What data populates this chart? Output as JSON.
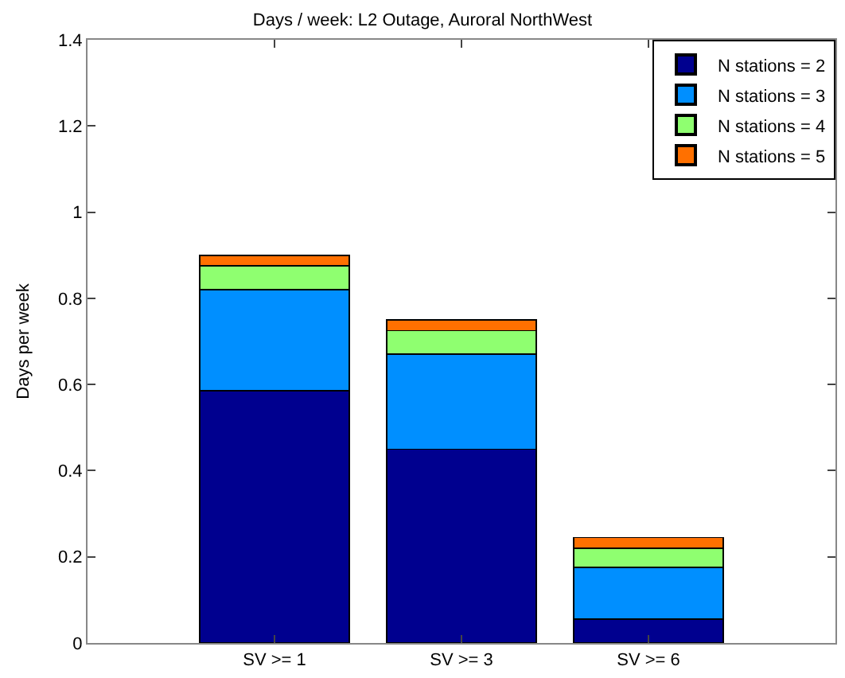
{
  "chart_data": {
    "type": "bar",
    "title": "Days / week: L2 Outage, Auroral NorthWest",
    "ylabel": "Days per week",
    "categories": [
      "SV >= 1",
      "SV >= 3",
      "SV >= 6"
    ],
    "stacked": true,
    "ylim": [
      0,
      1.4
    ],
    "yticks": [
      0,
      0.2,
      0.4,
      0.6,
      0.8,
      1,
      1.2,
      1.4
    ],
    "legend": "top right",
    "series": [
      {
        "name": "N stations = 2",
        "color": "#00008f",
        "values": [
          0.585,
          0.45,
          0.055
        ]
      },
      {
        "name": "N stations = 3",
        "color": "#008fff",
        "values": [
          0.235,
          0.22,
          0.12
        ]
      },
      {
        "name": "N stations = 4",
        "color": "#8fff70",
        "values": [
          0.055,
          0.055,
          0.045
        ]
      },
      {
        "name": "N stations = 5",
        "color": "#ff7000",
        "values": [
          0.025,
          0.025,
          0.025
        ]
      }
    ]
  }
}
